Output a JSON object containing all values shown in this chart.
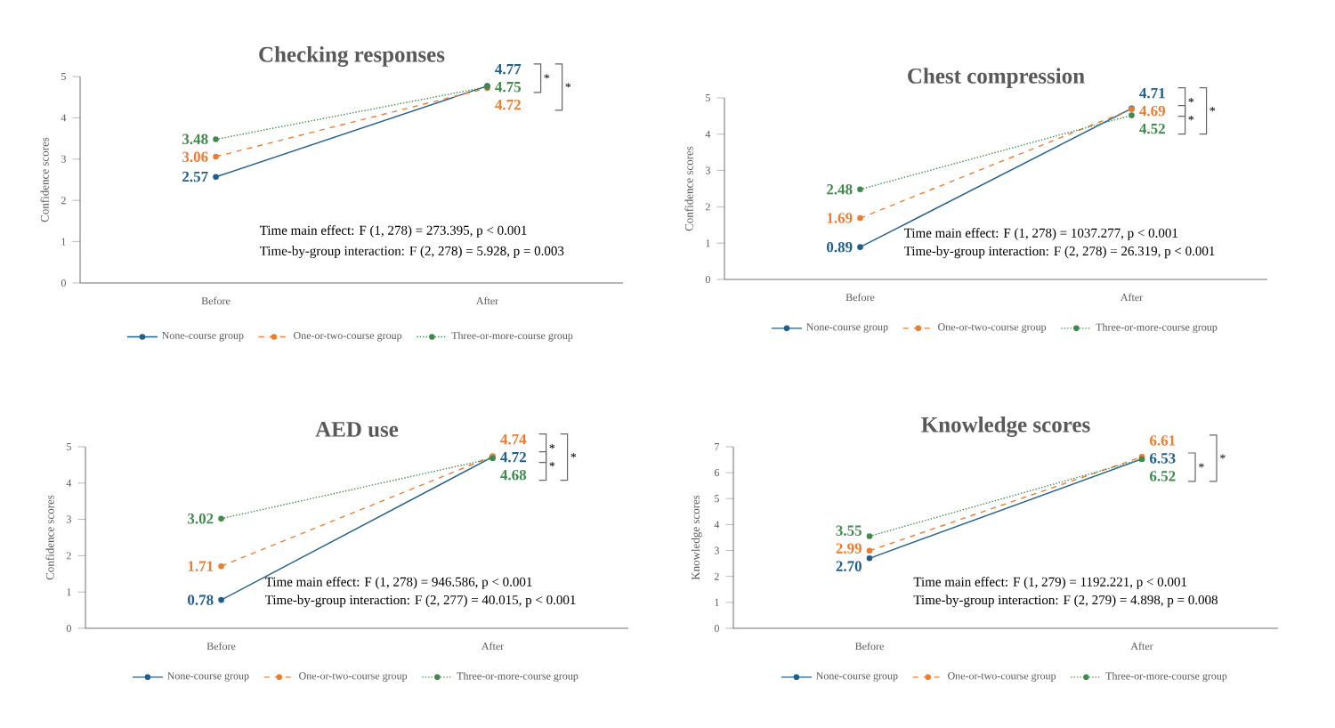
{
  "chart_data": [
    {
      "type": "line",
      "title": "Checking responses",
      "ylabel": "Confidence scores",
      "categories": [
        "Before",
        "After"
      ],
      "series": [
        {
          "name": "None-course group",
          "color": "#1f5f8b",
          "line_style": "solid",
          "values": [
            2.57,
            4.77
          ],
          "value_labels": [
            "2.57",
            "4.77"
          ]
        },
        {
          "name": "One-or-two-course group",
          "color": "#ed7d31",
          "line_style": "dashed",
          "values": [
            3.06,
            4.72
          ],
          "value_labels": [
            "3.06",
            "4.72"
          ]
        },
        {
          "name": "Three-or-more-course group",
          "color": "#3f8a4c",
          "line_style": "dotted",
          "values": [
            3.48,
            4.75
          ],
          "value_labels": [
            "3.48",
            "4.75"
          ]
        }
      ],
      "ylim": [
        0,
        5
      ],
      "yticks": [
        0,
        1,
        2,
        3,
        4,
        5
      ],
      "marker": "circle",
      "legend": "bottom",
      "annotations": [
        "Time main effect: F (1, 278) = 273.395, p < 0.001",
        "Time-by-group interaction: F (2, 278) = 5.928, p = 0.003",
        "*",
        "*"
      ]
    },
    {
      "type": "line",
      "title": "Chest compression",
      "ylabel": "Confidence scores",
      "categories": [
        "Before",
        "After"
      ],
      "series": [
        {
          "name": "None-course group",
          "color": "#1f5f8b",
          "line_style": "solid",
          "values": [
            0.89,
            4.71
          ],
          "value_labels": [
            "0.89",
            "4.71"
          ]
        },
        {
          "name": "One-or-two-course group",
          "color": "#ed7d31",
          "line_style": "dashed",
          "values": [
            1.69,
            4.69
          ],
          "value_labels": [
            "1.69",
            "4.69"
          ]
        },
        {
          "name": "Three-or-more-course group",
          "color": "#3f8a4c",
          "line_style": "dotted",
          "values": [
            2.48,
            4.52
          ],
          "value_labels": [
            "2.48",
            "4.52"
          ]
        }
      ],
      "ylim": [
        0,
        5
      ],
      "yticks": [
        0,
        1,
        2,
        3,
        4,
        5
      ],
      "marker": "circle",
      "legend": "bottom",
      "annotations": [
        "Time main effect: F (1, 278) = 1037.277, p < 0.001",
        "Time-by-group interaction: F (2, 278) = 26.319, p < 0.001",
        "*",
        "*",
        "*"
      ]
    },
    {
      "type": "line",
      "title": "AED use",
      "ylabel": "Confidence scores",
      "categories": [
        "Before",
        "After"
      ],
      "series": [
        {
          "name": "None-course group",
          "color": "#1f5f8b",
          "line_style": "solid",
          "values": [
            0.78,
            4.72
          ],
          "value_labels": [
            "0.78",
            "4.72"
          ]
        },
        {
          "name": "One-or-two-course group",
          "color": "#ed7d31",
          "line_style": "dashed",
          "values": [
            1.71,
            4.74
          ],
          "value_labels": [
            "1.71",
            "4.74"
          ]
        },
        {
          "name": "Three-or-more-course group",
          "color": "#3f8a4c",
          "line_style": "dotted",
          "values": [
            3.02,
            4.68
          ],
          "value_labels": [
            "3.02",
            "4.68"
          ]
        }
      ],
      "ylim": [
        0,
        5
      ],
      "yticks": [
        0,
        1,
        2,
        3,
        4,
        5
      ],
      "marker": "circle",
      "legend": "bottom",
      "annotations": [
        "Time main effect: F (1, 278) = 946.586, p < 0.001",
        "Time-by-group interaction: F (2, 277) = 40.015, p < 0.001",
        "*",
        "*",
        "*"
      ]
    },
    {
      "type": "line",
      "title": "Knowledge scores",
      "ylabel": "Knowledge scores",
      "categories": [
        "Before",
        "After"
      ],
      "series": [
        {
          "name": "None-course group",
          "color": "#1f5f8b",
          "line_style": "solid",
          "values": [
            2.7,
            6.53
          ],
          "value_labels": [
            "2.70",
            "6.53"
          ]
        },
        {
          "name": "One-or-two-course group",
          "color": "#ed7d31",
          "line_style": "dashed",
          "values": [
            2.99,
            6.61
          ],
          "value_labels": [
            "2.99",
            "6.61"
          ]
        },
        {
          "name": "Three-or-more-course group",
          "color": "#3f8a4c",
          "line_style": "dotted",
          "values": [
            3.55,
            6.52
          ],
          "value_labels": [
            "3.55",
            "6.52"
          ]
        }
      ],
      "ylim": [
        0,
        7
      ],
      "yticks": [
        0,
        1,
        2,
        3,
        4,
        5,
        6,
        7
      ],
      "marker": "circle",
      "legend": "bottom",
      "annotations": [
        "Time main effect: F (1, 279) = 1192.221, p < 0.001",
        "Time-by-group interaction: F (2, 279) = 4.898, p = 0.008",
        "*",
        "*"
      ]
    }
  ]
}
